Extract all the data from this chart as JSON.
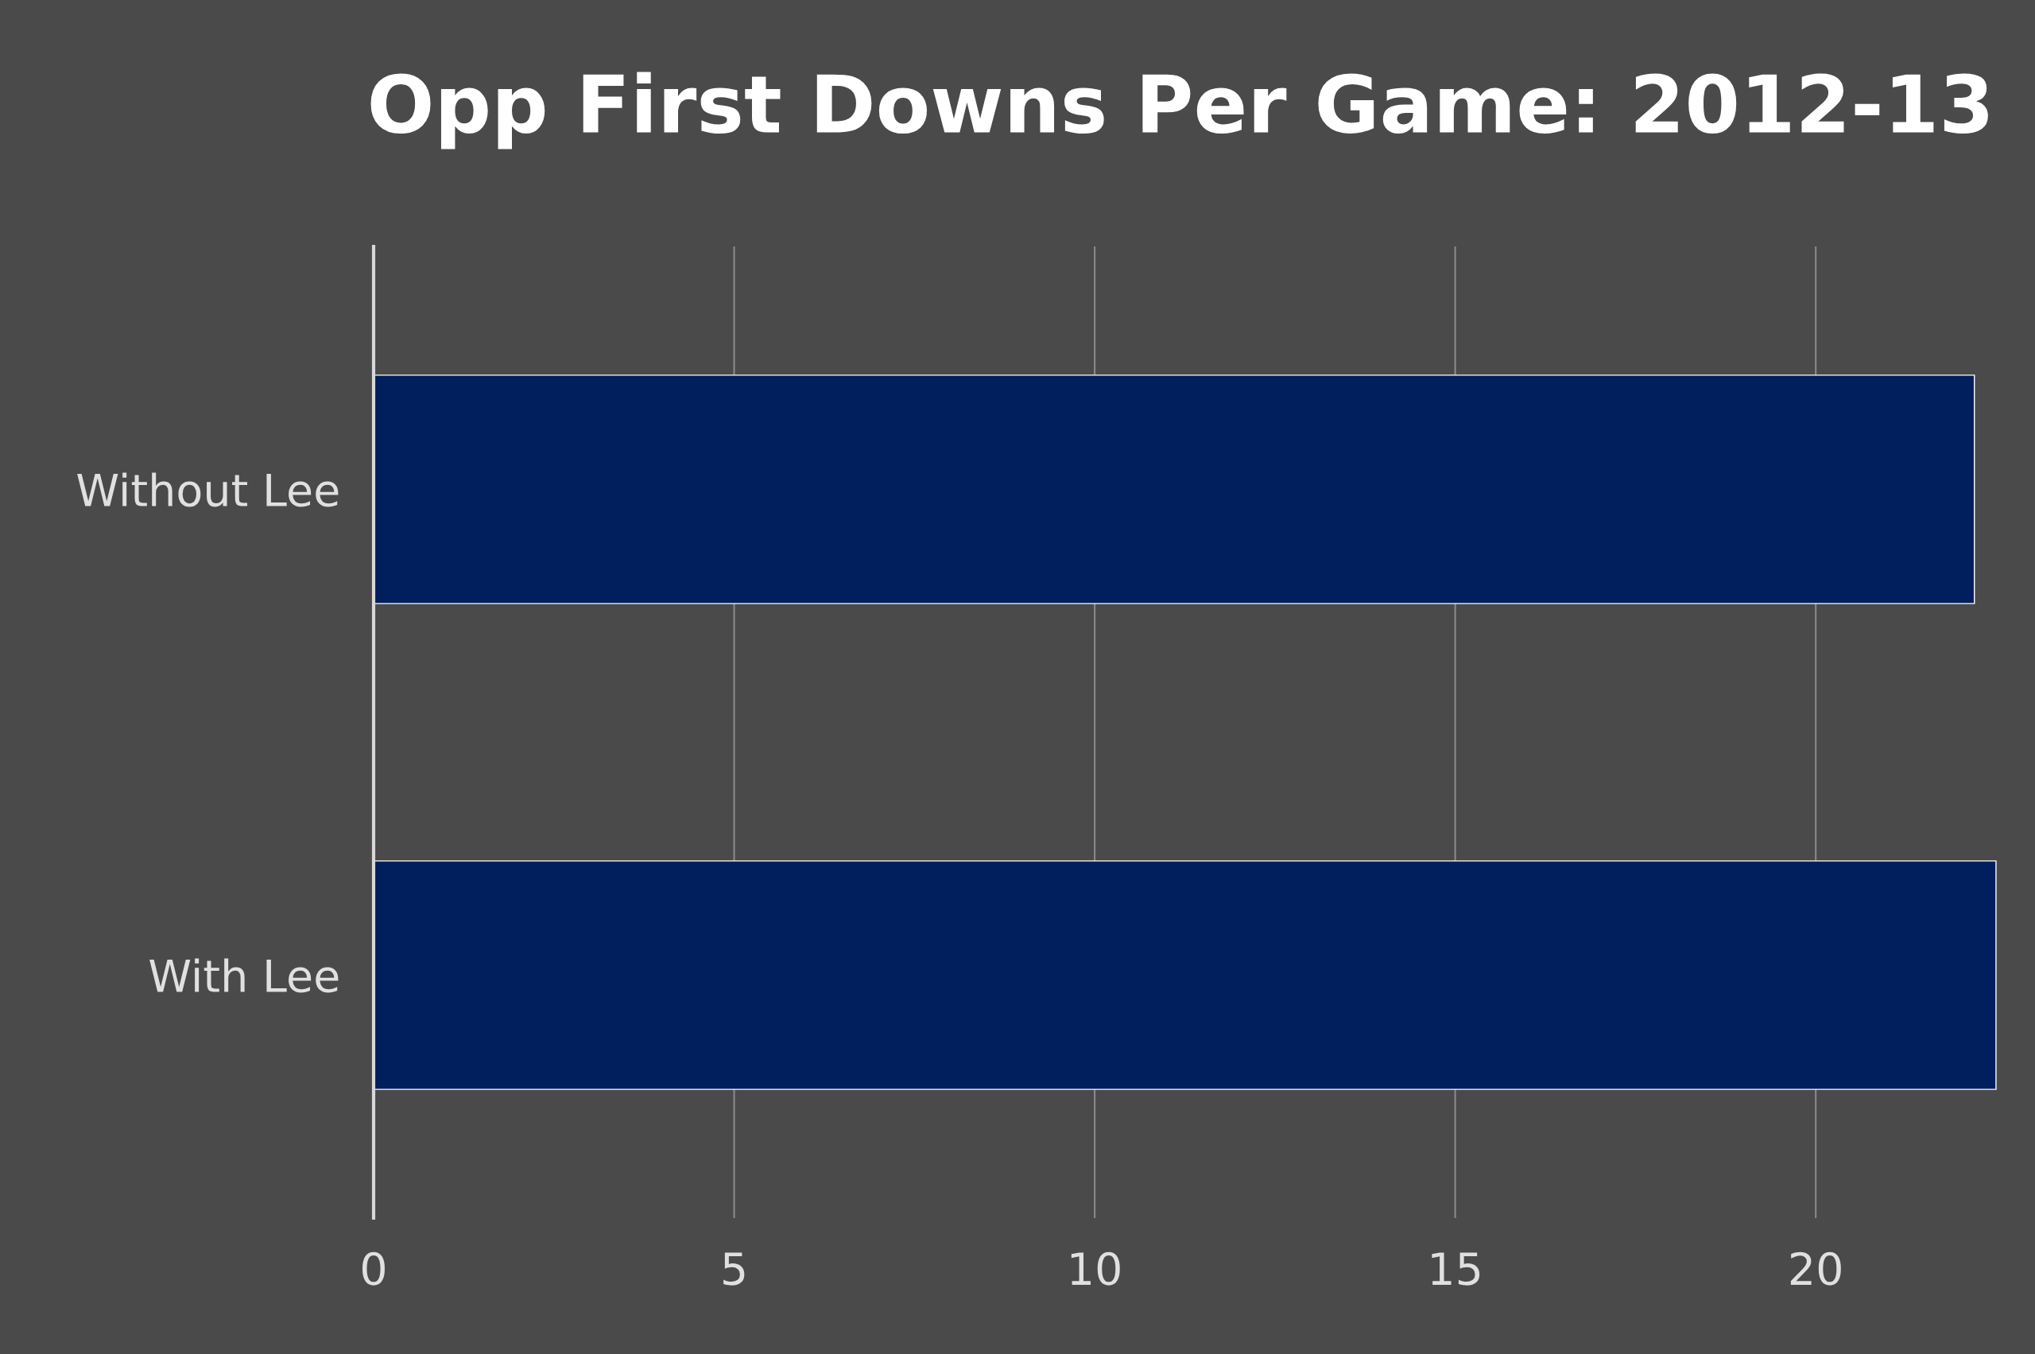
{
  "chart_data": {
    "type": "bar",
    "orientation": "horizontal",
    "title": "Opp First Downs Per Game: 2012-13",
    "categories": [
      "Without Lee",
      "With Lee"
    ],
    "values": [
      22.2,
      22.5
    ],
    "color": "#001f5c",
    "xlim": [
      0,
      22.6
    ],
    "xticks": [
      0,
      5,
      10,
      15,
      20
    ],
    "grid": "x",
    "legend": false
  }
}
